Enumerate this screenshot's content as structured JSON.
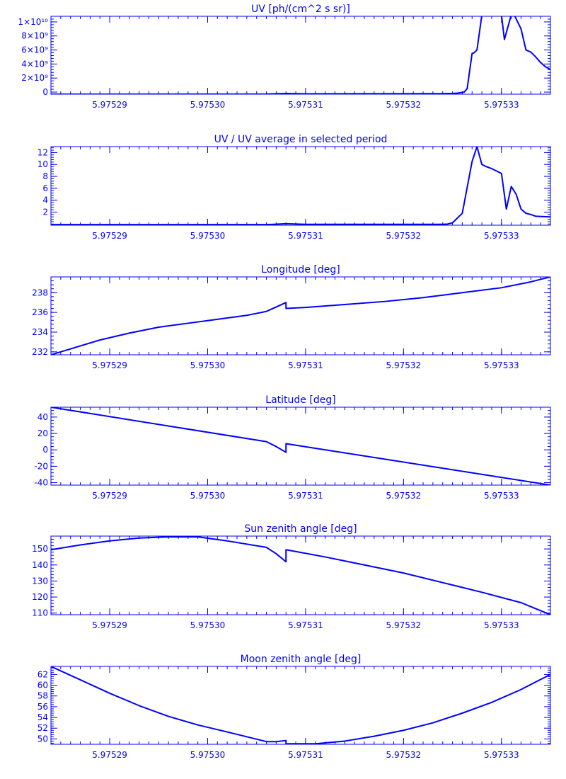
{
  "colors": {
    "line": "#0000ff",
    "background": "#ffffff"
  },
  "chart_data": [
    {
      "type": "line",
      "title": "UV [ph/(cm^2 s sr)]",
      "x_ticks": [
        "5.97529",
        "5.97530",
        "5.97531",
        "5.97532",
        "5.97533"
      ],
      "x_tick_values": [
        5.97529,
        5.9753,
        5.97531,
        5.97532,
        5.97533
      ],
      "xlim": [
        5.975284,
        5.975335
      ],
      "y_ticks": [
        "0",
        "2×10⁹",
        "4×10⁹",
        "6×10⁹",
        "8×10⁹",
        "1×10¹⁰"
      ],
      "y_tick_values": [
        0,
        2000000000,
        4000000000,
        6000000000,
        8000000000,
        10000000000
      ],
      "ylim": [
        -300000000,
        10800000000
      ],
      "x": [
        5.975284,
        5.975306,
        5.975308,
        5.97531,
        5.975324,
        5.975325,
        5.9753255,
        5.9753262,
        5.9753265,
        5.975327,
        5.9753272,
        5.9753275,
        5.975328,
        5.97533,
        5.9753303,
        5.975331,
        5.9753313,
        5.975332,
        5.9753325,
        5.975333,
        5.9753335,
        5.975334,
        5.9753345,
        5.975335
      ],
      "y": [
        -300000000,
        -280000000,
        -200000000,
        -250000000,
        -220000000,
        -200000000,
        -150000000,
        0,
        500000000,
        5500000000,
        5600000000,
        6000000000,
        11000000000,
        11000000000,
        7500000000,
        11000000000,
        11000000000,
        9000000000,
        6000000000,
        5700000000,
        5000000000,
        4200000000,
        3600000000,
        3200000000
      ]
    },
    {
      "type": "line",
      "title": "UV / UV average in selected period",
      "x_ticks": [
        "5.97529",
        "5.97530",
        "5.97531",
        "5.97532",
        "5.97533"
      ],
      "x_tick_values": [
        5.97529,
        5.9753,
        5.97531,
        5.97532,
        5.97533
      ],
      "xlim": [
        5.975284,
        5.975335
      ],
      "y_ticks": [
        "2",
        "4",
        "6",
        "8",
        "10",
        "12"
      ],
      "y_tick_values": [
        2,
        4,
        6,
        8,
        10,
        12
      ],
      "ylim": [
        -0.2,
        13
      ],
      "x": [
        5.975284,
        5.975306,
        5.975308,
        5.97531,
        5.975324,
        5.9753245,
        5.975325,
        5.975326,
        5.975327,
        5.9753275,
        5.975328,
        5.9753285,
        5.975329,
        5.97533,
        5.9753305,
        5.975331,
        5.9753315,
        5.975332,
        5.9753325,
        5.975333,
        5.9753335,
        5.975335
      ],
      "y": [
        -0.1,
        -0.1,
        0.05,
        -0.05,
        -0.05,
        0,
        0.2,
        1.8,
        10.5,
        13,
        10,
        9.6,
        9.3,
        8.5,
        2.5,
        6.3,
        5.0,
        2.5,
        1.8,
        1.6,
        1.3,
        1.2
      ]
    },
    {
      "type": "line",
      "title": "Longitude [deg]",
      "x_ticks": [
        "5.97529",
        "5.97530",
        "5.97531",
        "5.97532",
        "5.97533"
      ],
      "x_tick_values": [
        5.97529,
        5.9753,
        5.97531,
        5.97532,
        5.97533
      ],
      "xlim": [
        5.975284,
        5.975335
      ],
      "y_ticks": [
        "232",
        "234",
        "236",
        "238"
      ],
      "y_tick_values": [
        232,
        234,
        236,
        238
      ],
      "ylim": [
        231.7,
        239.6
      ],
      "x": [
        5.975284,
        5.975286,
        5.975289,
        5.975292,
        5.975295,
        5.975298,
        5.975301,
        5.975304,
        5.975306,
        5.975308,
        5.975308,
        5.97531,
        5.975314,
        5.975318,
        5.975322,
        5.975326,
        5.97533,
        5.975333,
        5.975335
      ],
      "y": [
        231.7,
        232.3,
        233.2,
        233.9,
        234.5,
        234.9,
        235.3,
        235.7,
        236.1,
        237.0,
        236.4,
        236.5,
        236.8,
        237.1,
        237.5,
        238.0,
        238.5,
        239.1,
        239.6
      ]
    },
    {
      "type": "line",
      "title": "Latitude [deg]",
      "x_ticks": [
        "5.97529",
        "5.97530",
        "5.97531",
        "5.97532",
        "5.97533"
      ],
      "x_tick_values": [
        5.97529,
        5.9753,
        5.97531,
        5.97532,
        5.97533
      ],
      "xlim": [
        5.975284,
        5.975335
      ],
      "y_ticks": [
        "-40",
        "-20",
        "0",
        "20",
        "40"
      ],
      "y_tick_values": [
        -40,
        -20,
        0,
        20,
        40
      ],
      "ylim": [
        -43,
        52
      ],
      "x": [
        5.975284,
        5.975306,
        5.975307,
        5.975308,
        5.975308,
        5.975335
      ],
      "y": [
        52,
        10,
        4,
        -3,
        7.5,
        -43
      ]
    },
    {
      "type": "line",
      "title": "Sun zenith angle [deg]",
      "x_ticks": [
        "5.97529",
        "5.97530",
        "5.97531",
        "5.97532",
        "5.97533"
      ],
      "x_tick_values": [
        5.97529,
        5.9753,
        5.97531,
        5.97532,
        5.97533
      ],
      "xlim": [
        5.975284,
        5.975335
      ],
      "y_ticks": [
        "110",
        "120",
        "130",
        "140",
        "150"
      ],
      "y_tick_values": [
        110,
        120,
        130,
        140,
        150
      ],
      "ylim": [
        109,
        158
      ],
      "x": [
        5.975284,
        5.975287,
        5.97529,
        5.975293,
        5.975296,
        5.975299,
        5.975302,
        5.975306,
        5.975307,
        5.975308,
        5.975308,
        5.975312,
        5.975316,
        5.97532,
        5.975324,
        5.975328,
        5.975332,
        5.975335
      ],
      "y": [
        149.5,
        152.5,
        155,
        156.8,
        157.5,
        157.5,
        155,
        151,
        147,
        142,
        149.5,
        145,
        140,
        135,
        129,
        123,
        116.5,
        109
      ]
    },
    {
      "type": "line",
      "title": "Moon zenith angle [deg]",
      "x_ticks": [
        "5.97529",
        "5.97530",
        "5.97531",
        "5.97532",
        "5.97533"
      ],
      "x_tick_values": [
        5.97529,
        5.9753,
        5.97531,
        5.97532,
        5.97533
      ],
      "xlim": [
        5.975284,
        5.975335
      ],
      "y_ticks": [
        "50",
        "52",
        "54",
        "56",
        "58",
        "60",
        "62"
      ],
      "y_tick_values": [
        50,
        52,
        54,
        56,
        58,
        60,
        62
      ],
      "ylim": [
        49,
        63.5
      ],
      "x": [
        5.975284,
        5.975287,
        5.97529,
        5.975293,
        5.975296,
        5.975299,
        5.975302,
        5.975306,
        5.975307,
        5.975308,
        5.975308,
        5.975311,
        5.975314,
        5.975317,
        5.97532,
        5.975323,
        5.975326,
        5.975329,
        5.975332,
        5.975335
      ],
      "y": [
        63.5,
        61.0,
        58.5,
        56.2,
        54.2,
        52.6,
        51.3,
        49.5,
        49.5,
        49.7,
        49.1,
        49.1,
        49.6,
        50.5,
        51.6,
        53.0,
        54.8,
        56.8,
        59.2,
        62.0
      ]
    }
  ]
}
